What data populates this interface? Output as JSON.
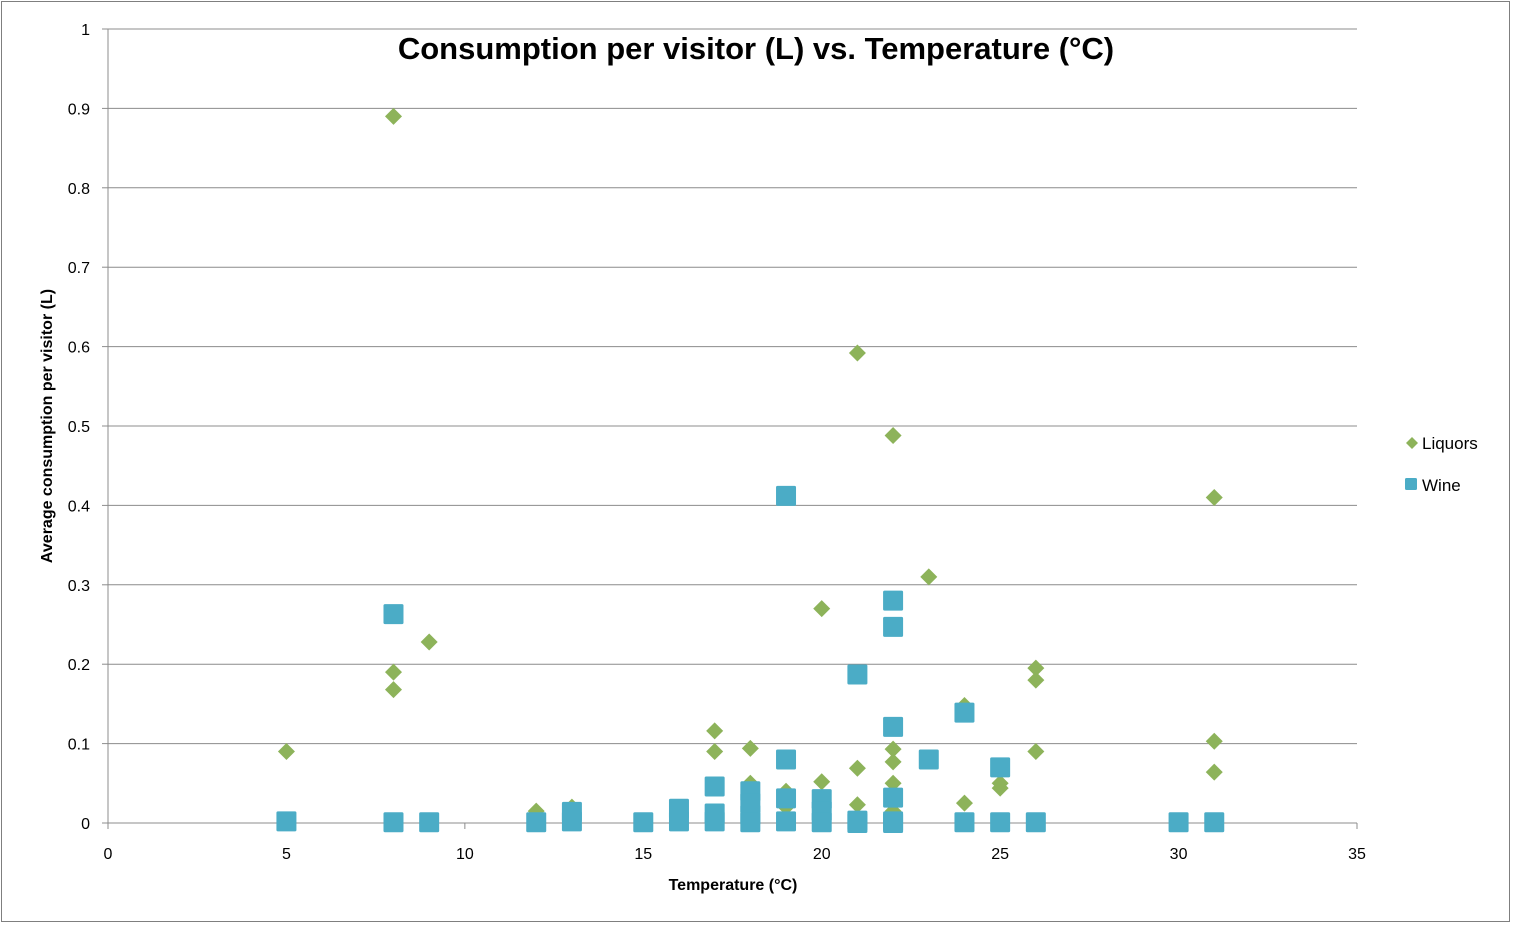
{
  "chart_data": {
    "type": "scatter",
    "title": "Consumption per visitor (L) vs. Temperature (°C)",
    "xlabel": "Temperature (°C)",
    "ylabel": "Average consumption per visitor (L)",
    "xlim": [
      0,
      35
    ],
    "ylim": [
      0,
      1
    ],
    "x_ticks": [
      "0",
      "5",
      "10",
      "15",
      "20",
      "25",
      "30",
      "35"
    ],
    "y_ticks": [
      "0",
      "0.1",
      "0.2",
      "0.3",
      "0.4",
      "0.5",
      "0.6",
      "0.7",
      "0.8",
      "0.9",
      "1"
    ],
    "grid": "horizontal",
    "legend_position": "right",
    "series": [
      {
        "name": "Liquors",
        "marker": "diamond",
        "color": "#8db35a",
        "points": [
          [
            5,
            0.09
          ],
          [
            8,
            0.89
          ],
          [
            8,
            0.19
          ],
          [
            8,
            0.168
          ],
          [
            9,
            0.228
          ],
          [
            12,
            0.015
          ],
          [
            13,
            0.02
          ],
          [
            17,
            0.116
          ],
          [
            17,
            0.09
          ],
          [
            18,
            0.094
          ],
          [
            18,
            0.05
          ],
          [
            19,
            0.04
          ],
          [
            19,
            0.02
          ],
          [
            20,
            0.27
          ],
          [
            20,
            0.052
          ],
          [
            21,
            0.592
          ],
          [
            21,
            0.069
          ],
          [
            21,
            0.023
          ],
          [
            22,
            0.488
          ],
          [
            22,
            0.093
          ],
          [
            22,
            0.077
          ],
          [
            22,
            0.05
          ],
          [
            22,
            0.015
          ],
          [
            23,
            0.31
          ],
          [
            24,
            0.148
          ],
          [
            24,
            0.025
          ],
          [
            25,
            0.05
          ],
          [
            25,
            0.044
          ],
          [
            26,
            0.195
          ],
          [
            26,
            0.18
          ],
          [
            26,
            0.09
          ],
          [
            31,
            0.41
          ],
          [
            31,
            0.103
          ],
          [
            31,
            0.064
          ]
        ]
      },
      {
        "name": "Wine",
        "marker": "square",
        "color": "#4bacc6",
        "points": [
          [
            5,
            0.002
          ],
          [
            8,
            0.263
          ],
          [
            8,
            0.001
          ],
          [
            9,
            0.001
          ],
          [
            12,
            0.001
          ],
          [
            13,
            0.014
          ],
          [
            13,
            0.002
          ],
          [
            15,
            0.001
          ],
          [
            16,
            0.018
          ],
          [
            16,
            0.002
          ],
          [
            17,
            0.046
          ],
          [
            17,
            0.012
          ],
          [
            17,
            0.002
          ],
          [
            18,
            0.04
          ],
          [
            18,
            0.025
          ],
          [
            18,
            0.01
          ],
          [
            18,
            0.001
          ],
          [
            19,
            0.412
          ],
          [
            19,
            0.08
          ],
          [
            19,
            0.031
          ],
          [
            19,
            0.002
          ],
          [
            20,
            0.03
          ],
          [
            20,
            0.015
          ],
          [
            20,
            0.001
          ],
          [
            21,
            0.187
          ],
          [
            21,
            0.003
          ],
          [
            21,
            0.0
          ],
          [
            22,
            0.28
          ],
          [
            22,
            0.247
          ],
          [
            22,
            0.121
          ],
          [
            22,
            0.032
          ],
          [
            22,
            0.002
          ],
          [
            22,
            0.0
          ],
          [
            23,
            0.08
          ],
          [
            24,
            0.139
          ],
          [
            24,
            0.001
          ],
          [
            25,
            0.07
          ],
          [
            25,
            0.001
          ],
          [
            26,
            0.001
          ],
          [
            30,
            0.001
          ],
          [
            31,
            0.001
          ]
        ]
      }
    ]
  }
}
